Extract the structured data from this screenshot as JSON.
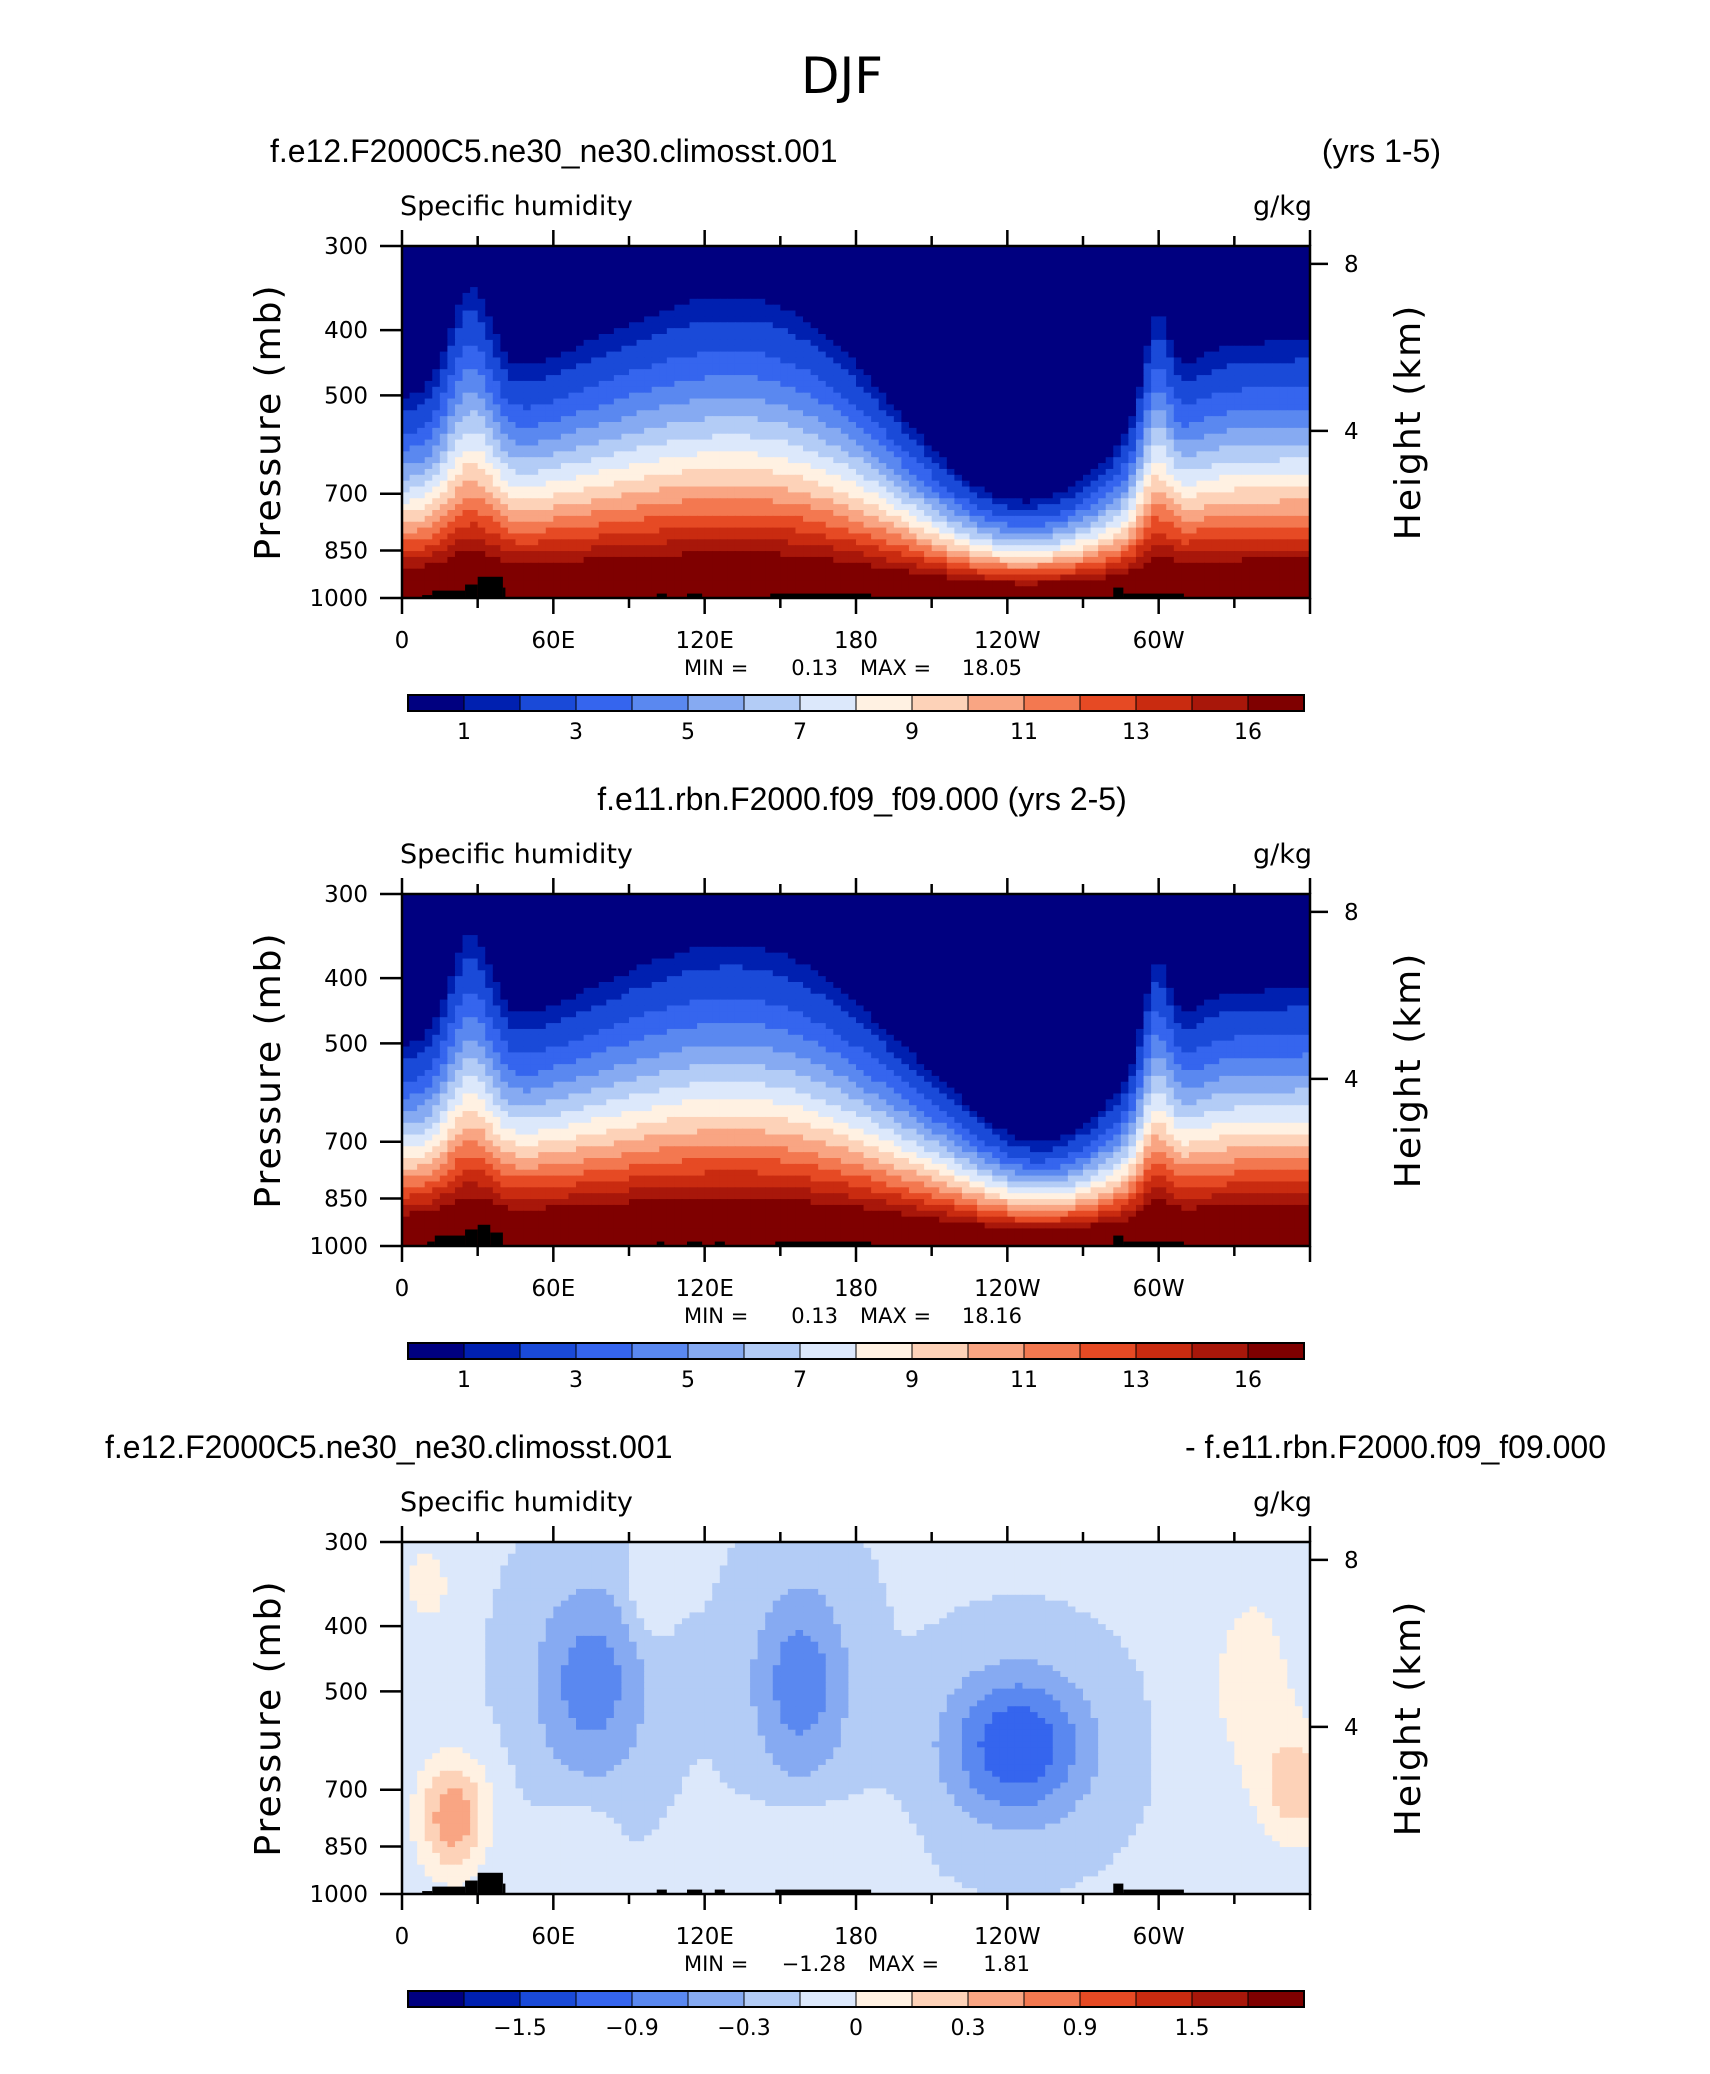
{
  "title": "DJF",
  "colors": {
    "levels": [
      "#000080",
      "#0020b0",
      "#1a4ad8",
      "#3565ee",
      "#5a88f0",
      "#86aaf2",
      "#b3ccf6",
      "#dce8fb",
      "#fff1e2",
      "#fdd2b8",
      "#f9a583",
      "#f37850",
      "#e64a24",
      "#c92b10",
      "#a8170a",
      "#7f0000"
    ],
    "topography": "#000000",
    "axes": "#000000"
  },
  "chart_data": [
    {
      "type": "heatmap",
      "header_left": "f.e12.F2000C5.ne30_ne30.climosst.001",
      "header_right": "(yrs 1-5)",
      "label_left": "Specific humidity",
      "label_right": "g/kg",
      "ylabel": "Pressure (mb)",
      "ylabel_right": "Height (km)",
      "y_ticks": [
        "300",
        "400",
        "500",
        "700",
        "850",
        "1000"
      ],
      "y_tick_values": [
        300,
        400,
        500,
        700,
        850,
        1000
      ],
      "y_right_ticks": [
        "8",
        "4"
      ],
      "y_right_values": [
        8,
        4
      ],
      "x_ticks": [
        "0",
        "60E",
        "120E",
        "180",
        "120W",
        "60W"
      ],
      "x_tick_values": [
        0,
        60,
        120,
        180,
        240,
        300
      ],
      "xlim": [
        0,
        360
      ],
      "ylim": [
        1000,
        300
      ],
      "min_label": "MIN =",
      "min_value": "0.13",
      "max_label": "MAX =",
      "max_value": "18.05",
      "colorbar_labels": [
        "1",
        "3",
        "5",
        "7",
        "9",
        "11",
        "13",
        "16"
      ],
      "colorbar_levels": [
        0.5,
        1,
        2,
        3,
        4,
        5,
        6,
        7,
        8,
        9,
        10,
        11,
        12,
        13,
        14,
        16
      ],
      "field_range": [
        0.13,
        18.05
      ]
    },
    {
      "type": "heatmap",
      "header_center": "f.e11.rbn.F2000.f09_f09.000 (yrs 2-5)",
      "label_left": "Specific humidity",
      "label_right": "g/kg",
      "ylabel": "Pressure (mb)",
      "ylabel_right": "Height (km)",
      "y_ticks": [
        "300",
        "400",
        "500",
        "700",
        "850",
        "1000"
      ],
      "y_tick_values": [
        300,
        400,
        500,
        700,
        850,
        1000
      ],
      "y_right_ticks": [
        "8",
        "4"
      ],
      "y_right_values": [
        8,
        4
      ],
      "x_ticks": [
        "0",
        "60E",
        "120E",
        "180",
        "120W",
        "60W"
      ],
      "x_tick_values": [
        0,
        60,
        120,
        180,
        240,
        300
      ],
      "xlim": [
        0,
        360
      ],
      "ylim": [
        1000,
        300
      ],
      "min_label": "MIN =",
      "min_value": "0.13",
      "max_label": "MAX =",
      "max_value": "18.16",
      "colorbar_labels": [
        "1",
        "3",
        "5",
        "7",
        "9",
        "11",
        "13",
        "16"
      ],
      "colorbar_levels": [
        0.5,
        1,
        2,
        3,
        4,
        5,
        6,
        7,
        8,
        9,
        10,
        11,
        12,
        13,
        14,
        16
      ],
      "field_range": [
        0.13,
        18.16
      ]
    },
    {
      "type": "heatmap",
      "header_left": "f.e12.F2000C5.ne30_ne30.climosst.001",
      "header_right": "- f.e11.rbn.F2000.f09_f09.000",
      "label_left": "Specific humidity",
      "label_right": "g/kg",
      "ylabel": "Pressure (mb)",
      "ylabel_right": "Height (km)",
      "y_ticks": [
        "300",
        "400",
        "500",
        "700",
        "850",
        "1000"
      ],
      "y_tick_values": [
        300,
        400,
        500,
        700,
        850,
        1000
      ],
      "y_right_ticks": [
        "8",
        "4"
      ],
      "y_right_values": [
        8,
        4
      ],
      "x_ticks": [
        "0",
        "60E",
        "120E",
        "180",
        "120W",
        "60W"
      ],
      "x_tick_values": [
        0,
        60,
        120,
        180,
        240,
        300
      ],
      "xlim": [
        0,
        360
      ],
      "ylim": [
        1000,
        300
      ],
      "min_label": "MIN =",
      "min_value": "−1.28",
      "max_label": "MAX =",
      "max_value": "1.81",
      "colorbar_labels": [
        "−1.5",
        "−0.9",
        "−0.3",
        "0",
        "0.3",
        "0.9",
        "1.5"
      ],
      "colorbar_levels": [
        -2.1,
        -1.8,
        -1.5,
        -1.2,
        -0.9,
        -0.6,
        -0.3,
        0,
        0.3,
        0.6,
        0.9,
        1.2,
        1.5,
        1.8,
        2.1
      ],
      "field_range": [
        -1.28,
        1.81
      ]
    }
  ]
}
